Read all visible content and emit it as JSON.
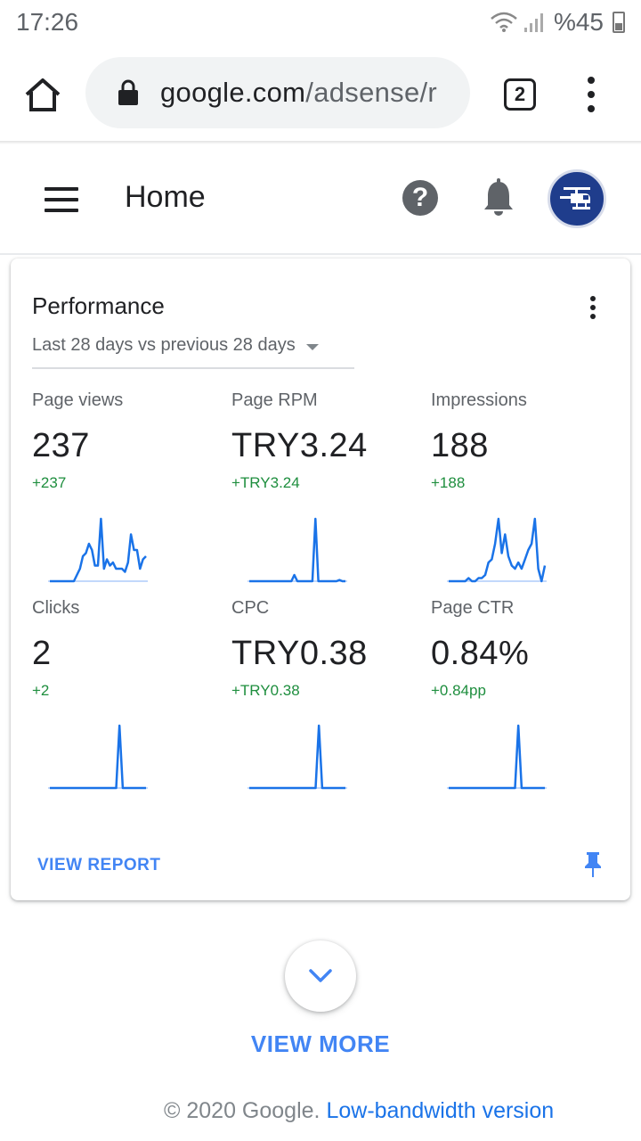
{
  "status_bar": {
    "time": "17:26",
    "battery": "%45"
  },
  "browser": {
    "url_domain": "google.com",
    "url_path": "/adsense/r",
    "tab_count": "2",
    "icons": [
      "home-icon",
      "lock-icon",
      "tabs-icon",
      "more-vert-icon"
    ]
  },
  "header": {
    "title": "Home",
    "icons": [
      "menu-icon",
      "help-icon",
      "notifications-icon",
      "account-avatar"
    ]
  },
  "performance": {
    "title": "Performance",
    "date_range": "Last 28 days vs previous 28 days",
    "metrics": [
      {
        "label": "Page views",
        "value": "237",
        "change": "+237",
        "trend": [
          0,
          0,
          0,
          0,
          0,
          0,
          0,
          0,
          0,
          0.1,
          0.2,
          0.4,
          0.45,
          0.6,
          0.5,
          0.25,
          0.25,
          1.0,
          0.2,
          0.35,
          0.25,
          0.3,
          0.2,
          0.2,
          0.2,
          0.15,
          0.3,
          0.75,
          0.5,
          0.5,
          0.2,
          0.35,
          0.4
        ]
      },
      {
        "label": "Page RPM",
        "value": "TRY3.24",
        "change": "+TRY3.24",
        "trend": [
          0,
          0,
          0,
          0,
          0,
          0,
          0,
          0,
          0,
          0,
          0,
          0,
          0,
          0,
          0,
          0.1,
          0,
          0,
          0,
          0,
          0,
          0,
          1.0,
          0,
          0,
          0,
          0,
          0,
          0,
          0,
          0.02,
          0,
          0
        ]
      },
      {
        "label": "Impressions",
        "value": "188",
        "change": "+188",
        "trend": [
          0,
          0,
          0,
          0,
          0,
          0,
          0.05,
          0,
          0,
          0.05,
          0.05,
          0.1,
          0.3,
          0.35,
          0.6,
          1.0,
          0.45,
          0.75,
          0.4,
          0.25,
          0.2,
          0.3,
          0.2,
          0.35,
          0.5,
          0.6,
          1.0,
          0.2,
          0,
          0.25
        ]
      },
      {
        "label": "Clicks",
        "value": "2",
        "change": "+2",
        "trend": [
          0,
          0,
          0,
          0,
          0,
          0,
          0,
          0,
          0,
          0,
          0,
          0,
          0,
          0,
          0,
          0,
          0,
          0,
          0,
          0,
          0,
          1.0,
          0,
          0,
          0,
          0,
          0,
          0,
          0,
          0
        ]
      },
      {
        "label": "CPC",
        "value": "TRY0.38",
        "change": "+TRY0.38",
        "trend": [
          0,
          0,
          0,
          0,
          0,
          0,
          0,
          0,
          0,
          0,
          0,
          0,
          0,
          0,
          0,
          0,
          0,
          0,
          0,
          0,
          0,
          1.0,
          0,
          0,
          0,
          0,
          0,
          0,
          0,
          0
        ]
      },
      {
        "label": "Page CTR",
        "value": "0.84%",
        "change": "+0.84pp",
        "trend": [
          0,
          0,
          0,
          0,
          0,
          0,
          0,
          0,
          0,
          0,
          0,
          0,
          0,
          0,
          0,
          0,
          0,
          0,
          0,
          0,
          0,
          1.0,
          0,
          0,
          0,
          0,
          0,
          0,
          0,
          0
        ]
      }
    ],
    "view_report": "VIEW REPORT"
  },
  "view_more": "VIEW MORE",
  "footer": {
    "copyright": "© 2020 Google.",
    "link": "Low-bandwidth version"
  },
  "colors": {
    "accent": "#4285f4",
    "positive": "#1e8e3e",
    "sparkline": "#1a73e8",
    "baseline": "#aecbfa",
    "avatar": "#1f3d8c"
  }
}
